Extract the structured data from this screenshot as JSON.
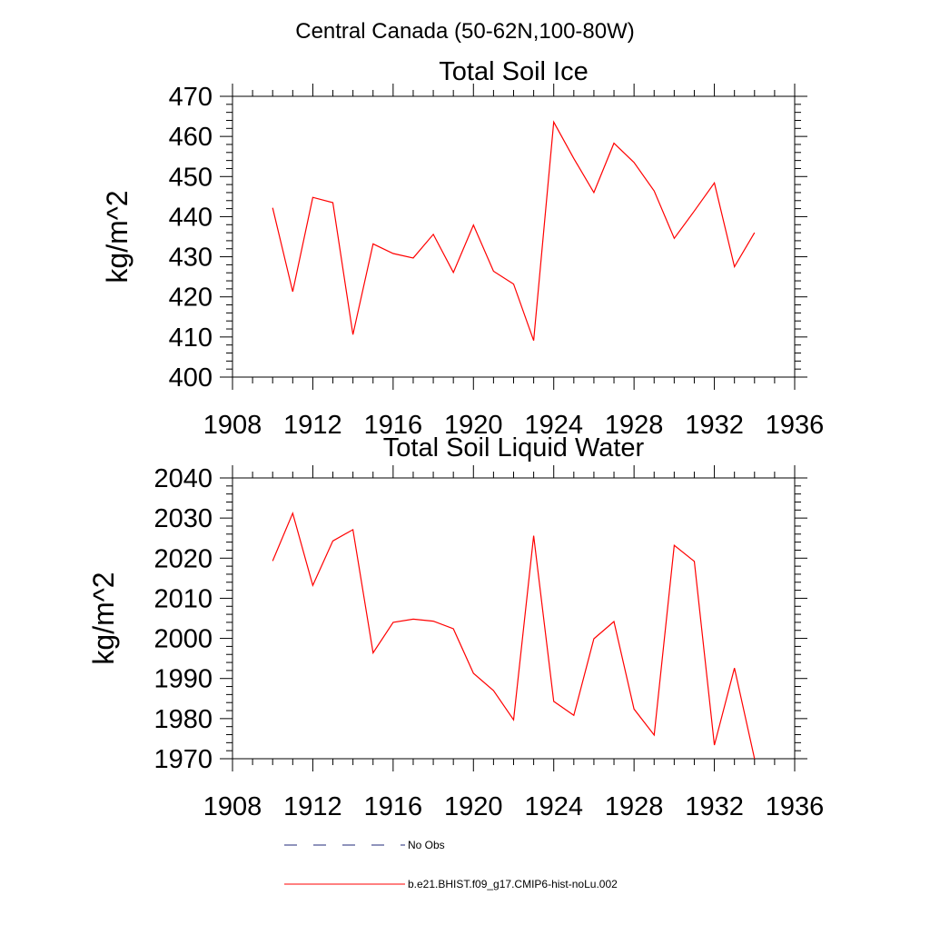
{
  "figure": {
    "suptitle": "Central Canada (50-62N,100-80W)"
  },
  "colors": {
    "model": "#ff0000",
    "obs": "#1f2a7a",
    "axis": "#000000"
  },
  "chart_data": [
    {
      "type": "line",
      "title": "Total Soil Ice",
      "ylabel": "kg/m^2",
      "xlabel": "",
      "xlim": [
        1908,
        1936
      ],
      "ylim": [
        400,
        470
      ],
      "xticks": [
        1908,
        1912,
        1916,
        1920,
        1924,
        1928,
        1932,
        1936
      ],
      "yticks": [
        400,
        410,
        420,
        430,
        440,
        450,
        460,
        470
      ],
      "yminor": 5,
      "series": [
        {
          "name": "b.e21.BHIST.f09_g17.CMIP6-hist-noLu.002",
          "x": [
            1910,
            1911,
            1912,
            1913,
            1914,
            1915,
            1916,
            1917,
            1918,
            1919,
            1920,
            1921,
            1922,
            1923,
            1924,
            1925,
            1926,
            1927,
            1928,
            1929,
            1930,
            1931,
            1932,
            1933,
            1934
          ],
          "values": [
            442.2,
            421.3,
            444.8,
            443.5,
            410.6,
            433.2,
            430.8,
            429.7,
            435.6,
            426.1,
            437.9,
            426.4,
            423.2,
            409.1,
            463.6,
            454.5,
            446.0,
            458.3,
            453.5,
            446.4,
            434.6,
            441.4,
            448.4,
            427.5,
            436.0
          ]
        }
      ]
    },
    {
      "type": "line",
      "title": "Total Soil Liquid Water",
      "ylabel": "kg/m^2",
      "xlabel": "",
      "xlim": [
        1908,
        1936
      ],
      "ylim": [
        1970,
        2040
      ],
      "xticks": [
        1908,
        1912,
        1916,
        1920,
        1924,
        1928,
        1932,
        1936
      ],
      "yticks": [
        1970,
        1980,
        1990,
        2000,
        2010,
        2020,
        2030,
        2040
      ],
      "yminor": 5,
      "series": [
        {
          "name": "b.e21.BHIST.f09_g17.CMIP6-hist-noLu.002",
          "x": [
            1910,
            1911,
            1912,
            1913,
            1914,
            1915,
            1916,
            1917,
            1918,
            1919,
            1920,
            1921,
            1922,
            1923,
            1924,
            1925,
            1926,
            1927,
            1928,
            1929,
            1930,
            1931,
            1932,
            1933,
            1934
          ],
          "values": [
            2019.3,
            2031.2,
            2013.2,
            2024.3,
            2027.1,
            1996.4,
            2004.0,
            2004.8,
            2004.3,
            2002.4,
            1991.3,
            1987.0,
            1979.7,
            2025.6,
            1984.3,
            1980.8,
            1999.9,
            2004.2,
            1982.4,
            1975.9,
            2023.2,
            2019.2,
            1973.4,
            1992.6,
            1970.0
          ]
        }
      ]
    }
  ],
  "legend": {
    "entries": [
      {
        "label": "No Obs",
        "style": "dashed",
        "color": "#1f2a7a"
      },
      {
        "label": "b.e21.BHIST.f09_g17.CMIP6-hist-noLu.002",
        "style": "solid",
        "color": "#ff0000"
      }
    ]
  }
}
